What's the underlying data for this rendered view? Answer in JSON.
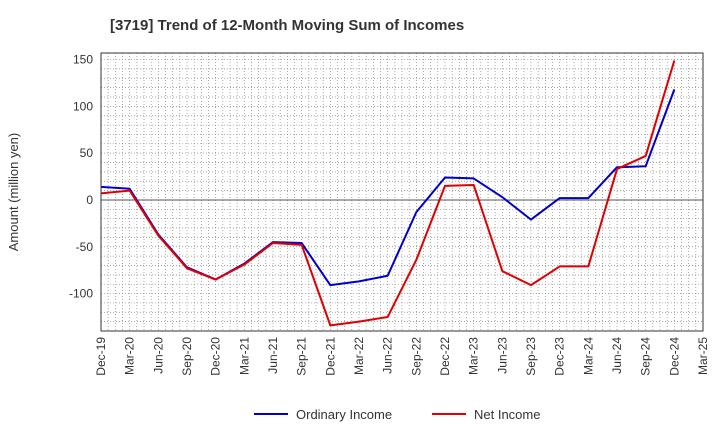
{
  "chart_data": {
    "type": "line",
    "title": "[3719]  Trend of 12-Month Moving Sum of Incomes",
    "ylabel": "Amount (million yen)",
    "xlabel": "",
    "ylim": [
      -140,
      157
    ],
    "yticks": [
      150,
      100,
      50,
      0,
      -50,
      -100
    ],
    "grid": true,
    "legend_position": "bottom-center",
    "categories": [
      "Dec-19",
      "Mar-20",
      "Jun-20",
      "Sep-20",
      "Dec-20",
      "Mar-21",
      "Jun-21",
      "Sep-21",
      "Dec-21",
      "Mar-22",
      "Jun-22",
      "Sep-22",
      "Dec-22",
      "Mar-23",
      "Jun-23",
      "Sep-23",
      "Dec-23",
      "Mar-24",
      "Jun-24",
      "Sep-24",
      "Dec-24",
      "Mar-25"
    ],
    "series": [
      {
        "name": "Ordinary Income",
        "color": "#0000cc",
        "values": [
          14,
          12,
          -37,
          -72,
          -85,
          -68,
          -45,
          -46,
          -91,
          -87,
          -81,
          -13,
          24,
          23,
          3,
          -21,
          2,
          2,
          35,
          36,
          118,
          null
        ]
      },
      {
        "name": "Net Income",
        "color": "#e00000",
        "values": [
          7,
          10,
          -38,
          -73,
          -85,
          -69,
          -46,
          -48,
          -134,
          -130,
          -125,
          -64,
          15,
          16,
          -76,
          -91,
          -71,
          -71,
          33,
          47,
          149,
          null
        ]
      }
    ]
  }
}
